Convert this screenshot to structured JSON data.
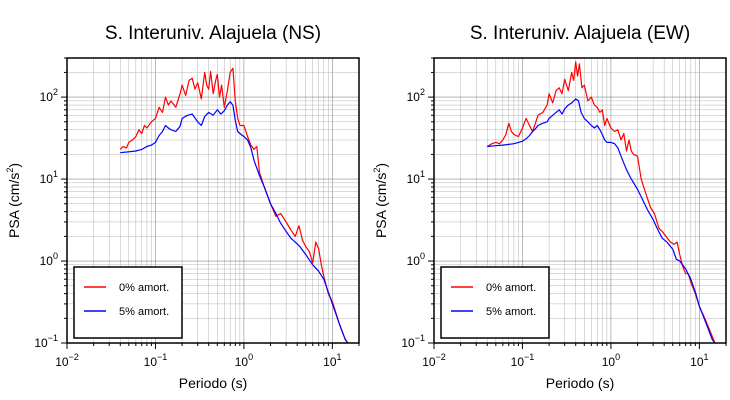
{
  "chart_data": [
    {
      "type": "line",
      "title": "S. Interuniv. Alajuela (NS)",
      "xlabel": "Periodo (s)",
      "ylabel": "PSA (cm/s²)",
      "ylabel_parts": [
        "PSA (cm/s",
        "2",
        ")"
      ],
      "xscale": "log",
      "yscale": "log",
      "xlim": [
        0.01,
        20
      ],
      "ylim": [
        0.1,
        300
      ],
      "grid": true,
      "legend_position": "bottom-left",
      "x_ticks": [
        {
          "value": 0.01,
          "base": "10",
          "exp": "−2"
        },
        {
          "value": 0.1,
          "base": "10",
          "exp": "−1"
        },
        {
          "value": 1,
          "base": "10",
          "exp": "0"
        },
        {
          "value": 10,
          "base": "10",
          "exp": "1"
        }
      ],
      "y_ticks": [
        {
          "value": 0.1,
          "base": "10",
          "exp": "−1"
        },
        {
          "value": 1,
          "base": "10",
          "exp": "0"
        },
        {
          "value": 10,
          "base": "10",
          "exp": "1"
        },
        {
          "value": 100,
          "base": "10",
          "exp": "2"
        }
      ],
      "series": [
        {
          "name": "0% amort.",
          "color": "#ff0000",
          "points": [
            [
              0.04,
              23
            ],
            [
              0.043,
              25
            ],
            [
              0.047,
              24
            ],
            [
              0.05,
              28
            ],
            [
              0.055,
              30
            ],
            [
              0.06,
              33
            ],
            [
              0.065,
              40
            ],
            [
              0.07,
              36
            ],
            [
              0.075,
              45
            ],
            [
              0.08,
              42
            ],
            [
              0.09,
              50
            ],
            [
              0.1,
              55
            ],
            [
              0.11,
              75
            ],
            [
              0.12,
              65
            ],
            [
              0.13,
              100
            ],
            [
              0.14,
              80
            ],
            [
              0.15,
              90
            ],
            [
              0.17,
              75
            ],
            [
              0.19,
              110
            ],
            [
              0.2,
              140
            ],
            [
              0.22,
              105
            ],
            [
              0.24,
              160
            ],
            [
              0.26,
              170
            ],
            [
              0.28,
              125
            ],
            [
              0.3,
              150
            ],
            [
              0.33,
              95
            ],
            [
              0.36,
              200
            ],
            [
              0.38,
              140
            ],
            [
              0.4,
              125
            ],
            [
              0.42,
              205
            ],
            [
              0.45,
              110
            ],
            [
              0.48,
              160
            ],
            [
              0.5,
              190
            ],
            [
              0.53,
              100
            ],
            [
              0.56,
              140
            ],
            [
              0.6,
              75
            ],
            [
              0.65,
              120
            ],
            [
              0.7,
              200
            ],
            [
              0.75,
              225
            ],
            [
              0.8,
              90
            ],
            [
              0.85,
              55
            ],
            [
              0.9,
              45
            ],
            [
              1.0,
              45
            ],
            [
              1.1,
              33
            ],
            [
              1.2,
              26
            ],
            [
              1.3,
              23
            ],
            [
              1.4,
              25
            ],
            [
              1.5,
              12
            ],
            [
              1.7,
              8
            ],
            [
              2.0,
              5
            ],
            [
              2.3,
              3.5
            ],
            [
              2.6,
              3.8
            ],
            [
              3.0,
              3.0
            ],
            [
              3.4,
              2.4
            ],
            [
              3.8,
              2.0
            ],
            [
              4.2,
              2.7
            ],
            [
              4.6,
              1.8
            ],
            [
              5.0,
              1.5
            ],
            [
              5.5,
              1.3
            ],
            [
              6.0,
              0.95
            ],
            [
              6.5,
              1.7
            ],
            [
              7.0,
              1.4
            ],
            [
              7.5,
              0.9
            ],
            [
              8.0,
              0.65
            ],
            [
              9.0,
              0.4
            ],
            [
              10,
              0.32
            ],
            [
              12,
              0.17
            ],
            [
              14,
              0.11
            ],
            [
              15,
              0.1
            ]
          ]
        },
        {
          "name": "5% amort.",
          "color": "#0000ff",
          "points": [
            [
              0.04,
              21
            ],
            [
              0.05,
              21.5
            ],
            [
              0.06,
              22
            ],
            [
              0.07,
              23
            ],
            [
              0.08,
              25
            ],
            [
              0.09,
              26
            ],
            [
              0.1,
              28
            ],
            [
              0.11,
              34
            ],
            [
              0.12,
              38
            ],
            [
              0.13,
              45
            ],
            [
              0.14,
              42
            ],
            [
              0.15,
              40
            ],
            [
              0.17,
              38
            ],
            [
              0.19,
              44
            ],
            [
              0.2,
              55
            ],
            [
              0.23,
              60
            ],
            [
              0.26,
              62
            ],
            [
              0.3,
              50
            ],
            [
              0.33,
              45
            ],
            [
              0.36,
              58
            ],
            [
              0.4,
              65
            ],
            [
              0.45,
              60
            ],
            [
              0.5,
              70
            ],
            [
              0.55,
              62
            ],
            [
              0.6,
              68
            ],
            [
              0.65,
              80
            ],
            [
              0.7,
              88
            ],
            [
              0.75,
              80
            ],
            [
              0.8,
              52
            ],
            [
              0.85,
              38
            ],
            [
              0.9,
              36
            ],
            [
              1.0,
              33
            ],
            [
              1.1,
              30
            ],
            [
              1.2,
              24
            ],
            [
              1.3,
              17
            ],
            [
              1.5,
              11
            ],
            [
              1.7,
              8
            ],
            [
              2.0,
              5
            ],
            [
              2.3,
              3.8
            ],
            [
              2.6,
              2.9
            ],
            [
              3.0,
              2.3
            ],
            [
              3.4,
              1.9
            ],
            [
              3.8,
              1.7
            ],
            [
              4.3,
              1.5
            ],
            [
              5.0,
              1.2
            ],
            [
              6.0,
              0.9
            ],
            [
              7.0,
              0.75
            ],
            [
              8.0,
              0.6
            ],
            [
              9.0,
              0.42
            ],
            [
              10,
              0.3
            ],
            [
              12,
              0.17
            ],
            [
              14,
              0.11
            ],
            [
              15,
              0.1
            ]
          ]
        }
      ]
    },
    {
      "type": "line",
      "title": "S. Interuniv. Alajuela (EW)",
      "xlabel": "Periodo (s)",
      "ylabel": "PSA (cm/s²)",
      "ylabel_parts": [
        "PSA (cm/s",
        "2",
        ")"
      ],
      "xscale": "log",
      "yscale": "log",
      "xlim": [
        0.01,
        20
      ],
      "ylim": [
        0.1,
        300
      ],
      "grid": true,
      "legend_position": "bottom-left",
      "x_ticks": [
        {
          "value": 0.01,
          "base": "10",
          "exp": "−2"
        },
        {
          "value": 0.1,
          "base": "10",
          "exp": "−1"
        },
        {
          "value": 1,
          "base": "10",
          "exp": "0"
        },
        {
          "value": 10,
          "base": "10",
          "exp": "1"
        }
      ],
      "y_ticks": [
        {
          "value": 0.1,
          "base": "10",
          "exp": "−1"
        },
        {
          "value": 1,
          "base": "10",
          "exp": "0"
        },
        {
          "value": 10,
          "base": "10",
          "exp": "1"
        },
        {
          "value": 100,
          "base": "10",
          "exp": "2"
        }
      ],
      "series": [
        {
          "name": "0% amort.",
          "color": "#ff0000",
          "points": [
            [
              0.04,
              25
            ],
            [
              0.045,
              27
            ],
            [
              0.05,
              28
            ],
            [
              0.055,
              27
            ],
            [
              0.06,
              30
            ],
            [
              0.065,
              35
            ],
            [
              0.07,
              48
            ],
            [
              0.075,
              38
            ],
            [
              0.08,
              35
            ],
            [
              0.09,
              33
            ],
            [
              0.1,
              42
            ],
            [
              0.11,
              55
            ],
            [
              0.12,
              45
            ],
            [
              0.13,
              38
            ],
            [
              0.14,
              48
            ],
            [
              0.15,
              60
            ],
            [
              0.17,
              65
            ],
            [
              0.19,
              80
            ],
            [
              0.2,
              110
            ],
            [
              0.22,
              85
            ],
            [
              0.24,
              120
            ],
            [
              0.26,
              130
            ],
            [
              0.28,
              110
            ],
            [
              0.3,
              165
            ],
            [
              0.33,
              120
            ],
            [
              0.36,
              200
            ],
            [
              0.38,
              160
            ],
            [
              0.4,
              270
            ],
            [
              0.42,
              180
            ],
            [
              0.44,
              255
            ],
            [
              0.47,
              130
            ],
            [
              0.5,
              140
            ],
            [
              0.55,
              90
            ],
            [
              0.6,
              100
            ],
            [
              0.65,
              80
            ],
            [
              0.7,
              75
            ],
            [
              0.75,
              65
            ],
            [
              0.8,
              70
            ],
            [
              0.85,
              45
            ],
            [
              0.9,
              55
            ],
            [
              1.0,
              42
            ],
            [
              1.1,
              38
            ],
            [
              1.2,
              40
            ],
            [
              1.3,
              30
            ],
            [
              1.4,
              36
            ],
            [
              1.5,
              22
            ],
            [
              1.6,
              30
            ],
            [
              1.7,
              22
            ],
            [
              1.8,
              20
            ],
            [
              2.0,
              19
            ],
            [
              2.2,
              10
            ],
            [
              2.5,
              6.5
            ],
            [
              2.8,
              4.5
            ],
            [
              3.1,
              3.8
            ],
            [
              3.5,
              2.5
            ],
            [
              3.8,
              2.3
            ],
            [
              4.2,
              2.0
            ],
            [
              4.7,
              1.7
            ],
            [
              5.2,
              1.6
            ],
            [
              5.6,
              1.7
            ],
            [
              6.0,
              1.2
            ],
            [
              6.5,
              0.85
            ],
            [
              7.0,
              0.7
            ],
            [
              7.5,
              0.7
            ],
            [
              8.0,
              0.55
            ],
            [
              9.0,
              0.4
            ],
            [
              10,
              0.28
            ],
            [
              12,
              0.18
            ],
            [
              14,
              0.12
            ],
            [
              15,
              0.1
            ]
          ]
        },
        {
          "name": "5% amort.",
          "color": "#0000ff",
          "points": [
            [
              0.04,
              25
            ],
            [
              0.05,
              25.5
            ],
            [
              0.06,
              26
            ],
            [
              0.07,
              26.5
            ],
            [
              0.08,
              27
            ],
            [
              0.09,
              28
            ],
            [
              0.1,
              29
            ],
            [
              0.11,
              31
            ],
            [
              0.12,
              34
            ],
            [
              0.13,
              38
            ],
            [
              0.14,
              41
            ],
            [
              0.15,
              45
            ],
            [
              0.17,
              48
            ],
            [
              0.19,
              50
            ],
            [
              0.2,
              55
            ],
            [
              0.22,
              60
            ],
            [
              0.24,
              65
            ],
            [
              0.26,
              70
            ],
            [
              0.28,
              62
            ],
            [
              0.3,
              72
            ],
            [
              0.33,
              80
            ],
            [
              0.36,
              85
            ],
            [
              0.4,
              95
            ],
            [
              0.43,
              90
            ],
            [
              0.46,
              65
            ],
            [
              0.5,
              55
            ],
            [
              0.55,
              50
            ],
            [
              0.6,
              45
            ],
            [
              0.65,
              42
            ],
            [
              0.7,
              45
            ],
            [
              0.75,
              40
            ],
            [
              0.8,
              35
            ],
            [
              0.85,
              30
            ],
            [
              0.9,
              28
            ],
            [
              1.0,
              28
            ],
            [
              1.1,
              27
            ],
            [
              1.2,
              24
            ],
            [
              1.3,
              19
            ],
            [
              1.5,
              13
            ],
            [
              1.7,
              10
            ],
            [
              2.0,
              7.5
            ],
            [
              2.3,
              5.5
            ],
            [
              2.6,
              4.2
            ],
            [
              3.0,
              3.2
            ],
            [
              3.4,
              2.4
            ],
            [
              3.8,
              1.9
            ],
            [
              4.3,
              1.7
            ],
            [
              5.0,
              1.4
            ],
            [
              5.5,
              1.05
            ],
            [
              6.0,
              1.0
            ],
            [
              7.0,
              0.8
            ],
            [
              8.0,
              0.6
            ],
            [
              9.0,
              0.42
            ],
            [
              10,
              0.28
            ],
            [
              12,
              0.17
            ],
            [
              14,
              0.11
            ],
            [
              15,
              0.1
            ]
          ]
        }
      ]
    }
  ]
}
